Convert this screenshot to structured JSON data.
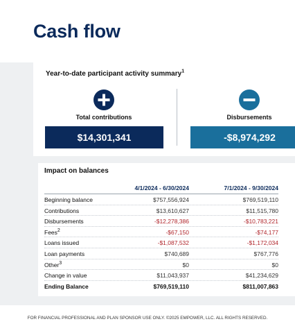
{
  "title": "Cash flow",
  "summary": {
    "title": "Year-to-date participant activity summary",
    "title_footnote": "1",
    "contributions": {
      "icon": "plus-circle-icon",
      "label": "Total contributions",
      "value": "$14,301,341",
      "color": "#0b2a5b"
    },
    "disbursements": {
      "icon": "minus-circle-icon",
      "label": "Disbursements",
      "value": "-$8,974,292",
      "color": "#1a6f9c"
    }
  },
  "impact": {
    "title": "Impact on balances",
    "columns": [
      "4/1/2024 - 6/30/2024",
      "7/1/2024 - 9/30/2024"
    ],
    "rows": [
      {
        "label": "Beginning balance",
        "footnote": "",
        "v1": "$757,556,924",
        "v2": "$769,519,110",
        "negative": false,
        "bold": false
      },
      {
        "label": "Contributions",
        "footnote": "",
        "v1": "$13,610,627",
        "v2": "$11,515,780",
        "negative": false,
        "bold": false
      },
      {
        "label": "Disbursements",
        "footnote": "",
        "v1": "-$12,278,386",
        "v2": "-$10,783,221",
        "negative": true,
        "bold": false
      },
      {
        "label": "Fees",
        "footnote": "2",
        "v1": "-$67,150",
        "v2": "-$74,177",
        "negative": true,
        "bold": false
      },
      {
        "label": "Loans issued",
        "footnote": "",
        "v1": "-$1,087,532",
        "v2": "-$1,172,034",
        "negative": true,
        "bold": false
      },
      {
        "label": "Loan payments",
        "footnote": "",
        "v1": "$740,689",
        "v2": "$767,776",
        "negative": false,
        "bold": false
      },
      {
        "label": "Other",
        "footnote": "3",
        "v1": "$0",
        "v2": "$0",
        "negative": false,
        "bold": false
      },
      {
        "label": "Change in value",
        "footnote": "",
        "v1": "$11,043,937",
        "v2": "$41,234,629",
        "negative": false,
        "bold": false
      },
      {
        "label": "Ending Balance",
        "footnote": "",
        "v1": "$769,519,110",
        "v2": "$811,007,863",
        "negative": false,
        "bold": true
      }
    ],
    "negative_color": "#b0252b"
  },
  "footer": "FOR FINANCIAL PROFESSIONAL AND PLAN SPONSOR USE ONLY. ©2025 EMPOWER, LLC. ALL RIGHTS RESERVED."
}
